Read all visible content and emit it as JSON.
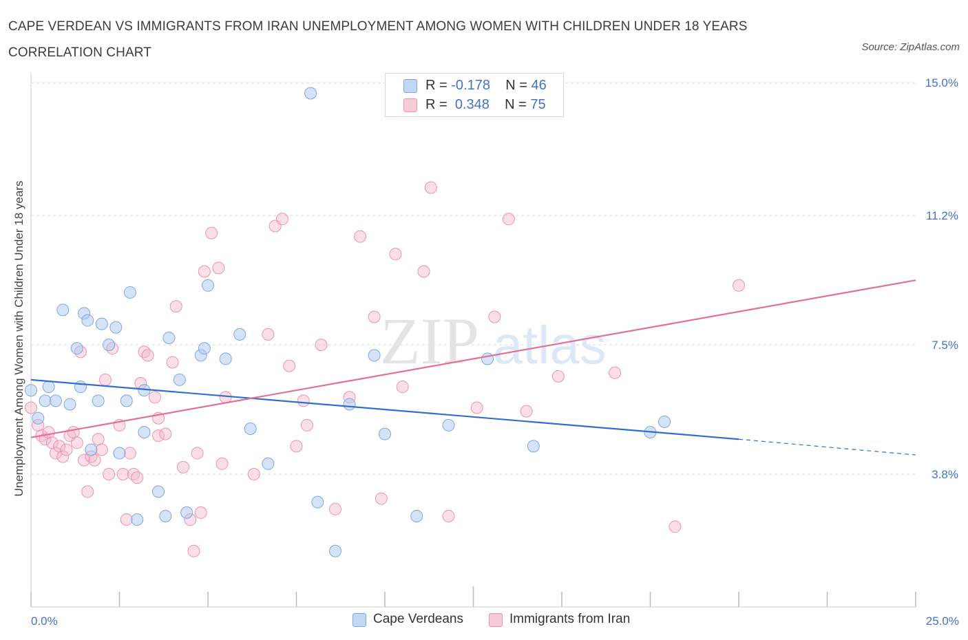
{
  "title": "CAPE VERDEAN VS IMMIGRANTS FROM IRAN UNEMPLOYMENT AMONG WOMEN WITH CHILDREN UNDER 18 YEARS CORRELATION CHART",
  "source": "Source: ZipAtlas.com",
  "watermark": {
    "zip": "ZIP",
    "atlas": "atlas"
  },
  "colors": {
    "blue_fill": "#aac8f0",
    "blue_stroke": "#7fa7dd",
    "blue_line": "#2f6fcf",
    "pink_fill": "#f5b8cb",
    "pink_stroke": "#eb93ae",
    "pink_line": "#e0709a",
    "tick_text": "#4472c4",
    "grid": "#d9d9d9"
  },
  "legend_top": {
    "rows": [
      {
        "r_label": "R =",
        "r_value": "-0.178",
        "n_label": "N =",
        "n_value": "46"
      },
      {
        "r_label": "R =",
        "r_value": "0.348",
        "n_label": "N =",
        "n_value": "75"
      }
    ]
  },
  "chart_data": {
    "type": "scatter",
    "title": "CAPE VERDEAN VS IMMIGRANTS FROM IRAN UNEMPLOYMENT AMONG WOMEN WITH CHILDREN UNDER 18 YEARS CORRELATION CHART",
    "xlabel": "",
    "ylabel": "Unemployment Among Women with Children Under 18 years",
    "xlim": [
      0,
      25
    ],
    "ylim": [
      0,
      15.3
    ],
    "x_tick_labels": [
      "0.0%",
      "25.0%"
    ],
    "y_ticks": [
      3.8,
      7.5,
      11.2,
      15.0
    ],
    "y_tick_labels": [
      "3.8%",
      "7.5%",
      "11.2%",
      "15.0%"
    ],
    "grid": "horizontal dashed",
    "legend_position": "bottom-center",
    "series": [
      {
        "name": "Cape Verdeans",
        "R": -0.178,
        "N": 46,
        "trend": {
          "x0": 0,
          "y0": 6.5,
          "x1": 20,
          "y1": 4.8,
          "dashed_to_x": 25,
          "dashed_to_y": 4.35
        },
        "points": [
          [
            0.0,
            6.2
          ],
          [
            0.2,
            5.4
          ],
          [
            0.4,
            5.9
          ],
          [
            0.5,
            6.3
          ],
          [
            0.7,
            5.9
          ],
          [
            0.9,
            8.5
          ],
          [
            1.1,
            5.8
          ],
          [
            1.3,
            7.4
          ],
          [
            1.4,
            6.3
          ],
          [
            1.5,
            8.4
          ],
          [
            1.6,
            8.2
          ],
          [
            1.7,
            4.5
          ],
          [
            1.9,
            5.9
          ],
          [
            2.0,
            8.1
          ],
          [
            2.2,
            7.5
          ],
          [
            2.4,
            8.0
          ],
          [
            2.5,
            4.4
          ],
          [
            2.7,
            5.9
          ],
          [
            2.8,
            9.0
          ],
          [
            3.0,
            2.5
          ],
          [
            3.2,
            6.2
          ],
          [
            3.2,
            5.0
          ],
          [
            3.6,
            3.3
          ],
          [
            3.8,
            2.6
          ],
          [
            3.9,
            7.7
          ],
          [
            4.2,
            6.5
          ],
          [
            4.4,
            2.7
          ],
          [
            4.8,
            7.2
          ],
          [
            4.9,
            7.4
          ],
          [
            5.0,
            9.2
          ],
          [
            5.5,
            7.1
          ],
          [
            5.9,
            7.8
          ],
          [
            6.2,
            5.1
          ],
          [
            6.7,
            4.1
          ],
          [
            7.9,
            14.7
          ],
          [
            8.1,
            3.0
          ],
          [
            8.6,
            1.6
          ],
          [
            9.0,
            5.8
          ],
          [
            9.7,
            7.2
          ],
          [
            10.0,
            4.95
          ],
          [
            10.9,
            2.6
          ],
          [
            11.8,
            5.2
          ],
          [
            12.9,
            7.1
          ],
          [
            14.2,
            4.6
          ],
          [
            17.5,
            5.0
          ],
          [
            17.9,
            5.3
          ]
        ]
      },
      {
        "name": "Immigrants from Iran",
        "R": 0.348,
        "N": 75,
        "trend": {
          "x0": 0,
          "y0": 4.85,
          "x1": 25,
          "y1": 9.35
        },
        "points": [
          [
            0.0,
            5.7
          ],
          [
            0.2,
            5.2
          ],
          [
            0.3,
            4.9
          ],
          [
            0.4,
            4.8
          ],
          [
            0.5,
            5.0
          ],
          [
            0.6,
            4.7
          ],
          [
            0.7,
            4.4
          ],
          [
            0.8,
            4.6
          ],
          [
            0.9,
            4.3
          ],
          [
            1.0,
            4.5
          ],
          [
            1.1,
            4.9
          ],
          [
            1.2,
            5.0
          ],
          [
            1.3,
            4.7
          ],
          [
            1.4,
            7.3
          ],
          [
            1.5,
            4.2
          ],
          [
            1.6,
            3.3
          ],
          [
            1.7,
            4.3
          ],
          [
            1.8,
            4.2
          ],
          [
            1.9,
            4.8
          ],
          [
            2.0,
            4.5
          ],
          [
            2.1,
            6.5
          ],
          [
            2.2,
            3.8
          ],
          [
            2.3,
            7.4
          ],
          [
            2.5,
            5.2
          ],
          [
            2.6,
            3.8
          ],
          [
            2.7,
            2.5
          ],
          [
            2.8,
            4.4
          ],
          [
            2.9,
            3.8
          ],
          [
            3.0,
            3.7
          ],
          [
            3.1,
            6.4
          ],
          [
            3.2,
            7.3
          ],
          [
            3.3,
            7.2
          ],
          [
            3.5,
            6.0
          ],
          [
            3.6,
            5.4
          ],
          [
            3.6,
            4.9
          ],
          [
            3.8,
            4.95
          ],
          [
            4.0,
            7.0
          ],
          [
            4.1,
            8.6
          ],
          [
            4.3,
            4.0
          ],
          [
            4.5,
            2.5
          ],
          [
            4.6,
            1.6
          ],
          [
            4.7,
            4.4
          ],
          [
            4.8,
            2.7
          ],
          [
            4.9,
            9.6
          ],
          [
            5.1,
            10.7
          ],
          [
            5.3,
            9.7
          ],
          [
            5.4,
            4.1
          ],
          [
            5.5,
            6.0
          ],
          [
            6.3,
            3.8
          ],
          [
            6.7,
            7.8
          ],
          [
            6.9,
            10.9
          ],
          [
            7.1,
            11.1
          ],
          [
            7.3,
            6.9
          ],
          [
            7.5,
            4.6
          ],
          [
            7.7,
            5.9
          ],
          [
            7.8,
            5.2
          ],
          [
            8.2,
            7.5
          ],
          [
            8.6,
            2.8
          ],
          [
            9.0,
            6.0
          ],
          [
            9.3,
            10.6
          ],
          [
            9.7,
            8.3
          ],
          [
            9.9,
            3.1
          ],
          [
            10.3,
            10.1
          ],
          [
            10.5,
            6.3
          ],
          [
            11.1,
            9.6
          ],
          [
            11.3,
            12.0
          ],
          [
            11.8,
            2.6
          ],
          [
            12.6,
            5.7
          ],
          [
            13.1,
            8.3
          ],
          [
            13.5,
            11.1
          ],
          [
            14.0,
            5.6
          ],
          [
            14.9,
            6.6
          ],
          [
            16.5,
            6.7
          ],
          [
            18.2,
            2.3
          ],
          [
            20.0,
            9.2
          ]
        ]
      }
    ]
  }
}
